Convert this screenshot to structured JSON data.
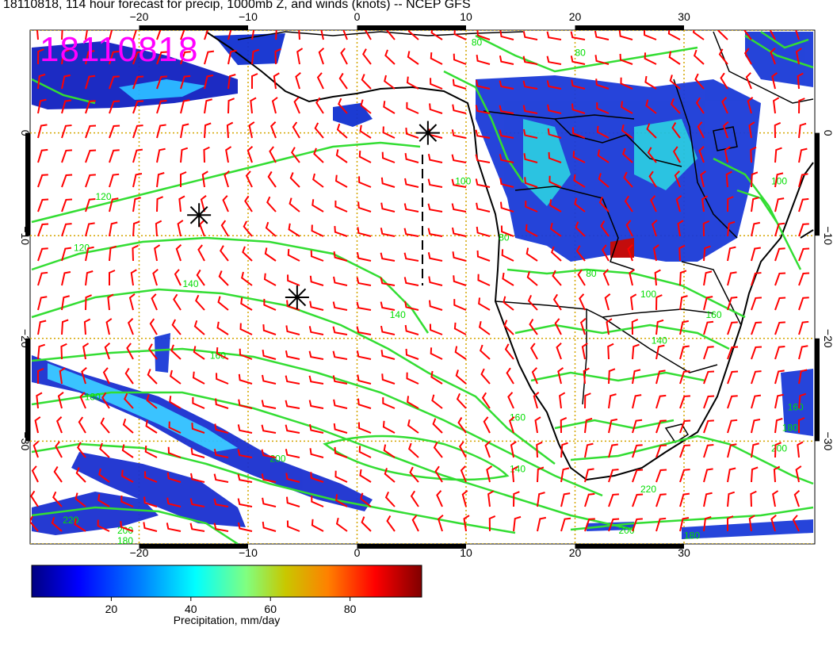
{
  "header": {
    "title": "18110818, 114 hour forecast for precip, 1000mb Z, and winds (knots) -- NCEP GFS",
    "stamp": "18110818"
  },
  "map": {
    "lon_range": [
      -30,
      42
    ],
    "lat_range": [
      -40,
      10
    ],
    "lon_ticks": [
      -20,
      -10,
      0,
      10,
      20,
      30
    ],
    "lat_ticks": [
      0,
      -10,
      -20,
      -30
    ],
    "lon_tick_labels": [
      "−20",
      "−10",
      "0",
      "10",
      "20",
      "30"
    ],
    "lat_tick_labels": [
      "0",
      "−10",
      "−20",
      "−30"
    ],
    "grid": true,
    "contour_color": "#00dd00",
    "barb_color": "#ff0000",
    "coast_color": "#000000",
    "grid_color": "#d4a500",
    "contour_labels": [
      {
        "text": "120",
        "lon": -24,
        "lat": -6.5
      },
      {
        "text": "120",
        "lon": -26,
        "lat": -11.5
      },
      {
        "text": "140",
        "lon": -16,
        "lat": -15
      },
      {
        "text": "160",
        "lon": -13.5,
        "lat": -22
      },
      {
        "text": "180",
        "lon": -25,
        "lat": -26
      },
      {
        "text": "200",
        "lon": -8,
        "lat": -32
      },
      {
        "text": "220",
        "lon": -27,
        "lat": -38
      },
      {
        "text": "200",
        "lon": -22,
        "lat": -39
      },
      {
        "text": "140",
        "lon": 3,
        "lat": -18
      },
      {
        "text": "160",
        "lon": 14,
        "lat": -28
      },
      {
        "text": "140",
        "lon": 14,
        "lat": -33
      },
      {
        "text": "100",
        "lon": 9,
        "lat": -5
      },
      {
        "text": "80",
        "lon": 13,
        "lat": -10.5
      },
      {
        "text": "80",
        "lon": 21,
        "lat": -14
      },
      {
        "text": "100",
        "lon": 26,
        "lat": -16
      },
      {
        "text": "160",
        "lon": 32,
        "lat": -18
      },
      {
        "text": "140",
        "lon": 27,
        "lat": -20.5
      },
      {
        "text": "220",
        "lon": 26,
        "lat": -35
      },
      {
        "text": "200",
        "lon": 38,
        "lat": -31
      },
      {
        "text": "100",
        "lon": 38,
        "lat": -5
      },
      {
        "text": "80",
        "lon": 20,
        "lat": 7.5
      },
      {
        "text": "80",
        "lon": 10.5,
        "lat": 8.5
      },
      {
        "text": "200",
        "lon": 24,
        "lat": -39
      },
      {
        "text": "180",
        "lon": 30,
        "lat": -39.5
      },
      {
        "text": "180",
        "lon": -22,
        "lat": -40
      },
      {
        "text": "160",
        "lon": 39.5,
        "lat": -27
      },
      {
        "text": "180",
        "lon": 39,
        "lat": -29
      }
    ],
    "markers": [
      {
        "name": "asterisk",
        "lon": 6.5,
        "lat": 0
      },
      {
        "name": "asterisk",
        "lon": -14.5,
        "lat": -8
      },
      {
        "name": "asterisk",
        "lon": -5.5,
        "lat": -16
      }
    ]
  },
  "colorbar": {
    "title": "Precipitation, mm/day",
    "range": [
      0,
      98
    ],
    "ticks": [
      20,
      40,
      60,
      80
    ],
    "tick_labels": [
      "20",
      "40",
      "60",
      "80"
    ],
    "colors": [
      "#000080",
      "#0000ff",
      "#0080ff",
      "#00ffff",
      "#80ff80",
      "#c8c800",
      "#ff8000",
      "#ff0000",
      "#800000"
    ]
  }
}
